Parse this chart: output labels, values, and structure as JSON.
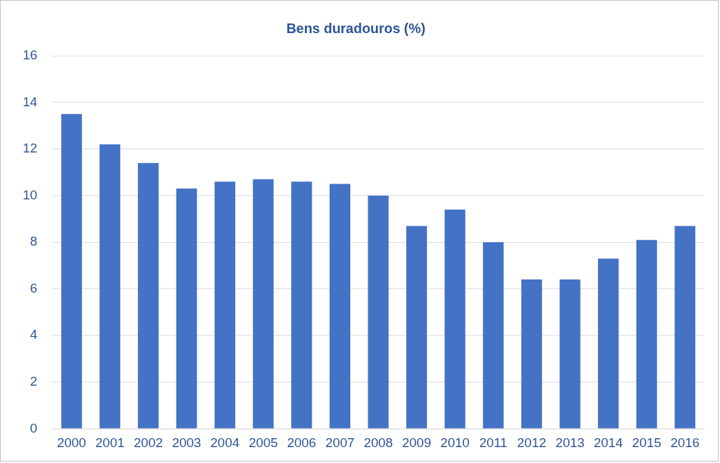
{
  "chart_data": {
    "type": "bar",
    "title": "Bens duradouros (%)",
    "categories": [
      "2000",
      "2001",
      "2002",
      "2003",
      "2004",
      "2005",
      "2006",
      "2007",
      "2008",
      "2009",
      "2010",
      "2011",
      "2012",
      "2013",
      "2014",
      "2015",
      "2016"
    ],
    "values": [
      13.5,
      12.2,
      11.4,
      10.3,
      10.6,
      10.7,
      10.6,
      10.5,
      10.0,
      8.7,
      9.4,
      8.0,
      6.4,
      6.4,
      7.3,
      8.1,
      8.7
    ],
    "color": "#4472c4",
    "ylim": [
      0,
      16
    ],
    "yticks": [
      0,
      2,
      4,
      6,
      8,
      10,
      12,
      14,
      16
    ],
    "grid": "y",
    "legend": false
  }
}
